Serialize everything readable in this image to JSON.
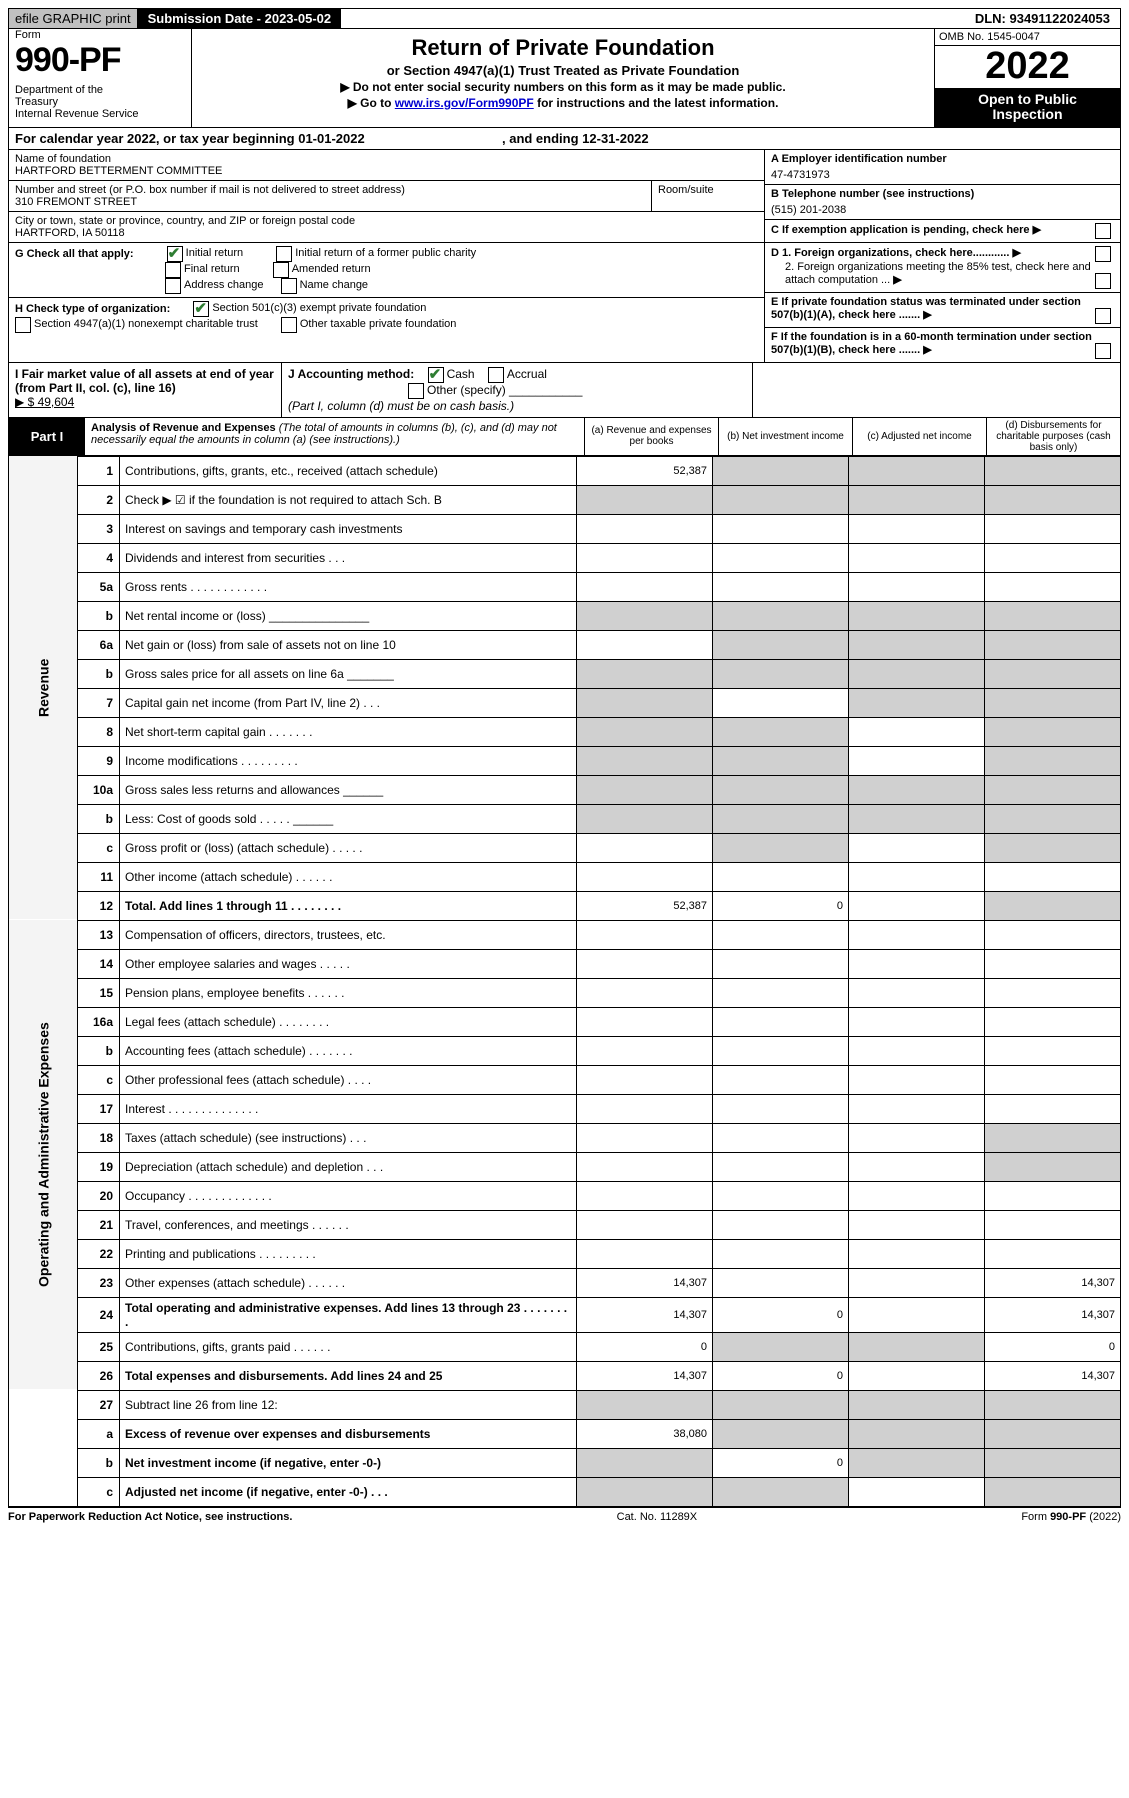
{
  "topbar": {
    "efile": "efile GRAPHIC print",
    "submission_label": "Submission Date - 2023-05-02",
    "dln": "DLN: 93491122024053"
  },
  "title": {
    "form_word": "Form",
    "form_number": "990-PF",
    "dept": "Department of the\nTreasury\nInternal Revenue Service",
    "main": "Return of Private Foundation",
    "sub": "or Section 4947(a)(1) Trust Treated as Private Foundation",
    "note1": "▶ Do not enter social security numbers on this form as it may be made public.",
    "note2_pre": "▶ Go to ",
    "note2_link": "www.irs.gov/Form990PF",
    "note2_post": " for instructions and the latest information.",
    "omb": "OMB No. 1545-0047",
    "year": "2022",
    "open": "Open to Public\nInspection"
  },
  "calyear": {
    "text": "For calendar year 2022, or tax year beginning 01-01-2022",
    "mid": ", and ending 12-31-2022"
  },
  "id": {
    "name_label": "Name of foundation",
    "name_val": "HARTFORD BETTERMENT COMMITTEE",
    "addr_label": "Number and street (or P.O. box number if mail is not delivered to street address)",
    "addr_val": "310 FREMONT STREET",
    "room_label": "Room/suite",
    "city_label": "City or town, state or province, country, and ZIP or foreign postal code",
    "city_val": "HARTFORD, IA  50118",
    "ein_label": "A Employer identification number",
    "ein_val": "47-4731973",
    "tel_label": "B Telephone number (see instructions)",
    "tel_val": "(515) 201-2038",
    "c_label": "C If exemption application is pending, check here",
    "d1": "D 1. Foreign organizations, check here............",
    "d2": "2. Foreign organizations meeting the 85% test, check here and attach computation ...",
    "e": "E  If private foundation status was terminated under section 507(b)(1)(A), check here .......",
    "f": "F  If the foundation is in a 60-month termination under section 507(b)(1)(B), check here .......",
    "g_label": "G Check all that apply:",
    "g_opts": [
      "Initial return",
      "Initial return of a former public charity",
      "Final return",
      "Amended return",
      "Address change",
      "Name change"
    ],
    "h_label": "H Check type of organization:",
    "h_opts": [
      "Section 501(c)(3) exempt private foundation",
      "Section 4947(a)(1) nonexempt charitable trust",
      "Other taxable private foundation"
    ],
    "i_label": "I Fair market value of all assets at end of year (from Part II, col. (c), line 16)",
    "i_val": "▶ $  49,604",
    "j_label": "J Accounting method:",
    "j_cash": "Cash",
    "j_accr": "Accrual",
    "j_other": "Other (specify)",
    "j_note": "(Part I, column (d) must be on cash basis.)"
  },
  "part1": {
    "badge": "Part I",
    "desc_title": "Analysis of Revenue and Expenses",
    "desc_note": "(The total of amounts in columns (b), (c), and (d) may not necessarily equal the amounts in column (a) (see instructions).)",
    "cols": {
      "a": "(a)  Revenue and expenses per books",
      "b": "(b)  Net investment income",
      "c": "(c)  Adjusted net income",
      "d": "(d)  Disbursements for charitable purposes (cash basis only)"
    }
  },
  "section_labels": {
    "revenue": "Revenue",
    "opex": "Operating and Administrative Expenses"
  },
  "rows": [
    {
      "sec": "rev",
      "ln": "1",
      "desc": "Contributions, gifts, grants, etc., received (attach schedule)",
      "a": "52,387",
      "shade_b": true,
      "shade_c": true,
      "shade_d": true
    },
    {
      "sec": "rev",
      "ln": "2",
      "desc": "Check ▶ ☑ if the foundation is not required to attach Sch. B",
      "all_shade": true
    },
    {
      "sec": "rev",
      "ln": "3",
      "desc": "Interest on savings and temporary cash investments"
    },
    {
      "sec": "rev",
      "ln": "4",
      "desc": "Dividends and interest from securities   .   .   ."
    },
    {
      "sec": "rev",
      "ln": "5a",
      "desc": "Gross rents   .   .   .   .   .   .   .   .   .   .   .   ."
    },
    {
      "sec": "rev",
      "ln": "b",
      "desc": "Net rental income or (loss)  _______________",
      "shade_all_cols": true
    },
    {
      "sec": "rev",
      "ln": "6a",
      "desc": "Net gain or (loss) from sale of assets not on line 10",
      "shade_b": true,
      "shade_c": true,
      "shade_d": true
    },
    {
      "sec": "rev",
      "ln": "b",
      "desc": "Gross sales price for all assets on line 6a _______",
      "shade_all_cols": true
    },
    {
      "sec": "rev",
      "ln": "7",
      "desc": "Capital gain net income (from Part IV, line 2)   .   .   .",
      "shade_a": true,
      "shade_c": true,
      "shade_d": true
    },
    {
      "sec": "rev",
      "ln": "8",
      "desc": "Net short-term capital gain   .   .   .   .   .   .   .",
      "shade_a": true,
      "shade_b": true,
      "shade_d": true
    },
    {
      "sec": "rev",
      "ln": "9",
      "desc": "Income modifications   .   .   .   .   .   .   .   .   .",
      "shade_a": true,
      "shade_b": true,
      "shade_d": true
    },
    {
      "sec": "rev",
      "ln": "10a",
      "desc": "Gross sales less returns and allowances  ______",
      "shade_all_cols": true
    },
    {
      "sec": "rev",
      "ln": "b",
      "desc": "Less: Cost of goods sold   .   .   .   .   .  ______",
      "shade_all_cols": true
    },
    {
      "sec": "rev",
      "ln": "c",
      "desc": "Gross profit or (loss) (attach schedule)   .   .   .   .   .",
      "shade_b": true,
      "shade_d": true
    },
    {
      "sec": "rev",
      "ln": "11",
      "desc": "Other income (attach schedule)   .   .   .   .   .   ."
    },
    {
      "sec": "rev",
      "ln": "12",
      "desc": "Total. Add lines 1 through 11   .   .   .   .   .   .   .   .",
      "bold": true,
      "a": "52,387",
      "b": "0",
      "shade_d": true
    },
    {
      "sec": "op",
      "ln": "13",
      "desc": "Compensation of officers, directors, trustees, etc."
    },
    {
      "sec": "op",
      "ln": "14",
      "desc": "Other employee salaries and wages   .   .   .   .   ."
    },
    {
      "sec": "op",
      "ln": "15",
      "desc": "Pension plans, employee benefits   .   .   .   .   .   ."
    },
    {
      "sec": "op",
      "ln": "16a",
      "desc": "Legal fees (attach schedule)   .   .   .   .   .   .   .   ."
    },
    {
      "sec": "op",
      "ln": "b",
      "desc": "Accounting fees (attach schedule)   .   .   .   .   .   .   ."
    },
    {
      "sec": "op",
      "ln": "c",
      "desc": "Other professional fees (attach schedule)   .   .   .   ."
    },
    {
      "sec": "op",
      "ln": "17",
      "desc": "Interest   .   .   .   .   .   .   .   .   .   .   .   .   .   ."
    },
    {
      "sec": "op",
      "ln": "18",
      "desc": "Taxes (attach schedule) (see instructions)   .   .   .",
      "shade_d": true
    },
    {
      "sec": "op",
      "ln": "19",
      "desc": "Depreciation (attach schedule) and depletion   .   .   .",
      "shade_d": true
    },
    {
      "sec": "op",
      "ln": "20",
      "desc": "Occupancy   .   .   .   .   .   .   .   .   .   .   .   .   ."
    },
    {
      "sec": "op",
      "ln": "21",
      "desc": "Travel, conferences, and meetings   .   .   .   .   .   ."
    },
    {
      "sec": "op",
      "ln": "22",
      "desc": "Printing and publications   .   .   .   .   .   .   .   .   ."
    },
    {
      "sec": "op",
      "ln": "23",
      "desc": "Other expenses (attach schedule)   .   .   .   .   .   .",
      "a": "14,307",
      "d": "14,307"
    },
    {
      "sec": "op",
      "ln": "24",
      "desc": "Total operating and administrative expenses. Add lines 13 through 23   .   .   .   .   .   .   .   .",
      "bold": true,
      "a": "14,307",
      "b": "0",
      "d": "14,307"
    },
    {
      "sec": "op",
      "ln": "25",
      "desc": "Contributions, gifts, grants paid   .   .   .   .   .   .",
      "a": "0",
      "shade_b": true,
      "shade_c": true,
      "d": "0"
    },
    {
      "sec": "op",
      "ln": "26",
      "desc": "Total expenses and disbursements. Add lines 24 and 25",
      "bold": true,
      "a": "14,307",
      "b": "0",
      "d": "14,307"
    },
    {
      "sec": "none",
      "ln": "27",
      "desc": "Subtract line 26 from line 12:",
      "shade_all_cols": true
    },
    {
      "sec": "none",
      "ln": "a",
      "desc": "Excess of revenue over expenses and disbursements",
      "bold": true,
      "a": "38,080",
      "shade_b": true,
      "shade_c": true,
      "shade_d": true
    },
    {
      "sec": "none",
      "ln": "b",
      "desc": "Net investment income (if negative, enter -0-)",
      "bold": true,
      "shade_a": true,
      "b": "0",
      "shade_c": true,
      "shade_d": true
    },
    {
      "sec": "none",
      "ln": "c",
      "desc": "Adjusted net income (if negative, enter -0-)   .   .   .",
      "bold": true,
      "shade_a": true,
      "shade_b": true,
      "shade_d": true
    }
  ],
  "footer": {
    "left": "For Paperwork Reduction Act Notice, see instructions.",
    "mid": "Cat. No. 11289X",
    "right": "Form 990-PF (2022)"
  },
  "colors": {
    "shade": "#d0d0d0",
    "link": "#0000d0",
    "check": "#2e7d32"
  }
}
